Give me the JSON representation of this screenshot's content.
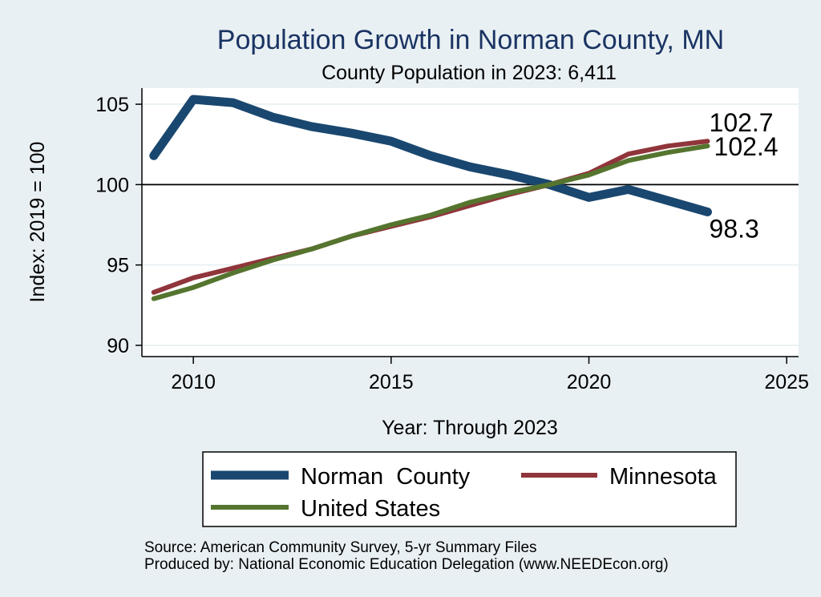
{
  "chart_data": {
    "type": "line",
    "title": "Population Growth in Norman County, MN",
    "subtitle": "County Population in 2023: 6,411",
    "xlabel": "Year: Through 2023",
    "ylabel": "Index: 2019 = 100",
    "xlim": [
      2008.7,
      2025.3
    ],
    "ylim": [
      89.3,
      106
    ],
    "xticks": [
      2010,
      2015,
      2020,
      2025
    ],
    "yticks": [
      90,
      95,
      100,
      105
    ],
    "reference_line": 100,
    "grid": true,
    "legend_position": "bottom",
    "x": [
      2009,
      2010,
      2011,
      2012,
      2013,
      2014,
      2015,
      2016,
      2017,
      2018,
      2019,
      2020,
      2021,
      2022,
      2023
    ],
    "series": [
      {
        "name": "Norman  County",
        "color": "#1a476f",
        "values": [
          101.8,
          105.3,
          105.1,
          104.2,
          103.6,
          103.2,
          102.7,
          101.8,
          101.1,
          100.6,
          100.0,
          99.2,
          99.7,
          99.0,
          98.3
        ],
        "end_label": "98.3"
      },
      {
        "name": "Minnesota",
        "color": "#90353b",
        "values": [
          93.3,
          94.2,
          94.8,
          95.4,
          96.0,
          96.8,
          97.4,
          98.0,
          98.7,
          99.4,
          100.0,
          100.7,
          101.9,
          102.4,
          102.7
        ],
        "end_label": "102.7"
      },
      {
        "name": "United States",
        "color": "#55752f",
        "values": [
          92.9,
          93.6,
          94.5,
          95.3,
          96.0,
          96.8,
          97.5,
          98.1,
          98.9,
          99.5,
          100.0,
          100.6,
          101.5,
          102.0,
          102.4
        ],
        "end_label": "102.4"
      }
    ]
  },
  "source_line": "Source: American Community Survey, 5-yr Summary Files",
  "produced_line": "Produced by: National Economic Education Delegation (www.NEEDEcon.org)"
}
